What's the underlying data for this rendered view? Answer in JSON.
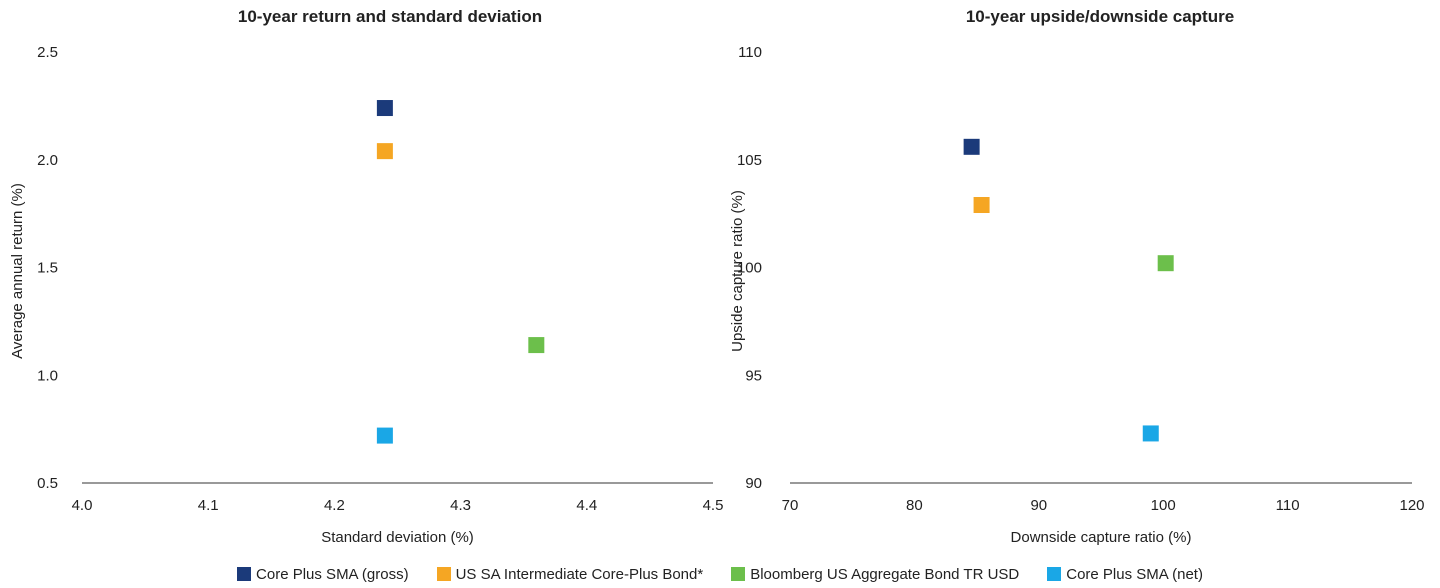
{
  "chart_data": [
    {
      "type": "scatter",
      "title": "10-year return and standard deviation",
      "xlabel": "Standard deviation (%)",
      "ylabel": "Average annual return (%)",
      "xlim": [
        4.0,
        4.5
      ],
      "ylim": [
        0.5,
        2.5
      ],
      "x_ticks": [
        "4.0",
        "4.1",
        "4.2",
        "4.3",
        "4.4",
        "4.5"
      ],
      "y_ticks": [
        "0.5",
        "1.0",
        "1.5",
        "2.0",
        "2.5"
      ],
      "grid": false,
      "series": [
        {
          "name": "Core Plus SMA (gross)",
          "x": 4.24,
          "y": 2.24
        },
        {
          "name": "US SA Intermediate Core-Plus Bond*",
          "x": 4.24,
          "y": 2.04
        },
        {
          "name": "Bloomberg US Aggregate Bond TR USD",
          "x": 4.36,
          "y": 1.14
        },
        {
          "name": "Core Plus SMA (net)",
          "x": 4.24,
          "y": 0.72
        }
      ]
    },
    {
      "type": "scatter",
      "title": "10-year upside/downside capture",
      "xlabel": "Downside capture ratio (%)",
      "ylabel": "Upside capture ratio (%)",
      "xlim": [
        70,
        120
      ],
      "ylim": [
        90,
        110
      ],
      "x_ticks": [
        "70",
        "80",
        "90",
        "100",
        "110",
        "120"
      ],
      "y_ticks": [
        "90",
        "95",
        "100",
        "105",
        "110"
      ],
      "grid": false,
      "series": [
        {
          "name": "Core Plus SMA (gross)",
          "x": 84.6,
          "y": 105.6
        },
        {
          "name": "US SA Intermediate Core-Plus Bond*",
          "x": 85.4,
          "y": 102.9
        },
        {
          "name": "Bloomberg US Aggregate Bond TR USD",
          "x": 100.2,
          "y": 100.2
        },
        {
          "name": "Core Plus SMA (net)",
          "x": 99.0,
          "y": 92.3
        }
      ]
    }
  ],
  "legend": {
    "placement": "bottom-center",
    "items": [
      {
        "label": "Core Plus SMA (gross)",
        "color": "#1b3a7a"
      },
      {
        "label": "US SA Intermediate Core-Plus Bond*",
        "color": "#f5a623"
      },
      {
        "label": "Bloomberg US Aggregate Bond TR USD",
        "color": "#6cbf4b"
      },
      {
        "label": "Core Plus SMA (net)",
        "color": "#1aa7e6"
      }
    ]
  }
}
